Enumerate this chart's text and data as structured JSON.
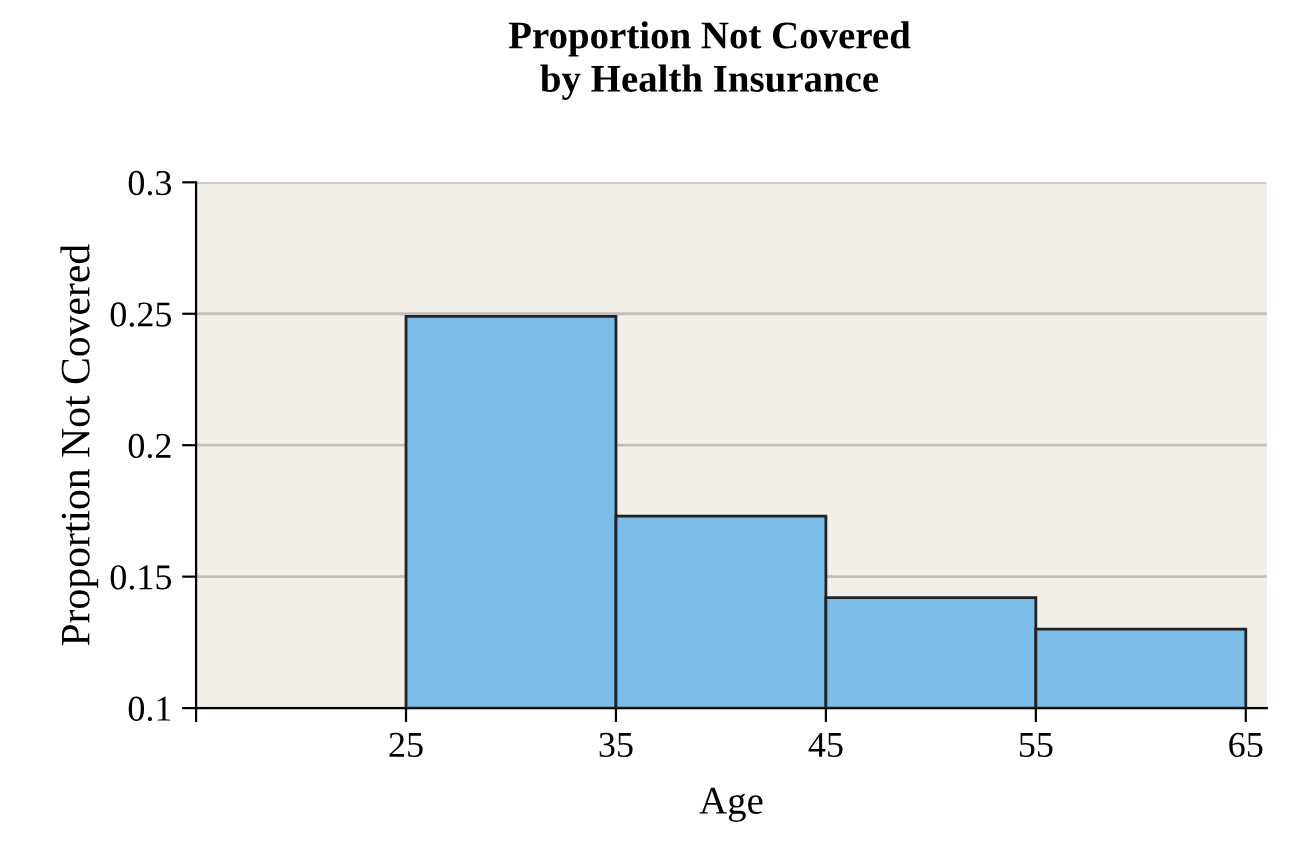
{
  "chart_data": {
    "type": "histogram",
    "title": "Proportion Not Covered\nby Health Insurance",
    "xlabel": "Age",
    "ylabel": "Proportion Not Covered",
    "bins": [
      25,
      35,
      45,
      55,
      65
    ],
    "values": [
      0.249,
      0.173,
      0.142,
      0.13
    ],
    "color": "#7bbde8",
    "xlim": [
      15,
      66
    ],
    "xticks": [
      {
        "value": 15,
        "label": null
      },
      25,
      35,
      45,
      55,
      65
    ],
    "ylim": [
      0.1,
      0.3
    ],
    "yticks": [
      0.1,
      0.15,
      0.2,
      0.25,
      0.3
    ],
    "grid": "y"
  }
}
